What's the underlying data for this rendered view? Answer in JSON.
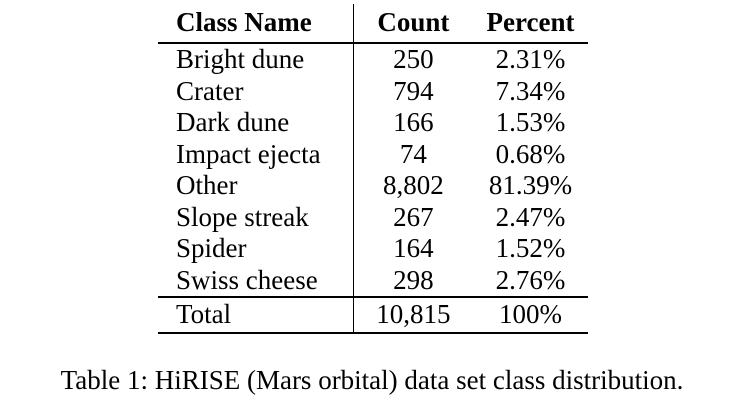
{
  "table": {
    "headers": [
      "Class Name",
      "Count",
      "Percent"
    ],
    "rows": [
      {
        "name": "Bright dune",
        "count": "250",
        "percent": "2.31%"
      },
      {
        "name": "Crater",
        "count": "794",
        "percent": "7.34%"
      },
      {
        "name": "Dark dune",
        "count": "166",
        "percent": "1.53%"
      },
      {
        "name": "Impact ejecta",
        "count": "74",
        "percent": "0.68%"
      },
      {
        "name": "Other",
        "count": "8,802",
        "percent": "81.39%"
      },
      {
        "name": "Slope streak",
        "count": "267",
        "percent": "2.47%"
      },
      {
        "name": "Spider",
        "count": "164",
        "percent": "1.52%"
      },
      {
        "name": "Swiss cheese",
        "count": "298",
        "percent": "2.76%"
      }
    ],
    "total": {
      "name": "Total",
      "count": "10,815",
      "percent": "100%"
    }
  },
  "caption": "Table 1: HiRISE (Mars orbital) data set class distribution."
}
